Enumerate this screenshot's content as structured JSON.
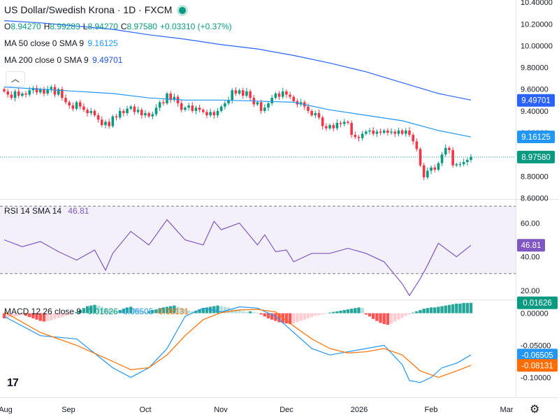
{
  "header": {
    "title": "US Dollar/Swedish Krona · 1D · FXCM",
    "ohlc": [
      {
        "k": "O",
        "v": "8.94270"
      },
      {
        "k": "H",
        "v": "8.99283"
      },
      {
        "k": "L",
        "v": "8.94270"
      },
      {
        "k": "C",
        "v": "8.97580"
      },
      {
        "k": "",
        "v": "+0.03310 (+0.37%)"
      }
    ],
    "ma50_label": "MA 50 close 0 SMA 9",
    "ma50_value": "9.16125",
    "ma200_label": "MA 200 close 0 SMA 9",
    "ma200_value": "9.49701",
    "collapse_icon": "chevron-up-icon"
  },
  "rsi_header": {
    "label": "RSI 14 SMA 14",
    "value": "46.81"
  },
  "macd_header": {
    "label": "MACD 12 26 close 9",
    "v1": "0.01626",
    "v2": "-0.06505",
    "v3": "-0.08131"
  },
  "colors": {
    "up": "#089981",
    "down": "#f23645",
    "ma50": "#2196f3",
    "ma200": "#2962ff",
    "rsi": "#7e57c2",
    "macd": "#2196f3",
    "signal": "#ff6d00",
    "hist_up_strong": "#26a69a",
    "hist_up_weak": "#b2dfdb",
    "hist_down_strong": "#ff5252",
    "hist_down_weak": "#ffcdd2"
  },
  "chart_data": [
    {
      "type": "candlestick",
      "title": "US Dollar/Swedish Krona · 1D · FXCM",
      "x_ticks": [
        "Aug",
        "Sep",
        "Oct",
        "Nov",
        "Dec",
        "2026",
        "Feb",
        "Mar"
      ],
      "y_ticks": [
        "10.40000",
        "10.20000",
        "10.00000",
        "9.80000",
        "9.60000",
        "9.40000",
        "9.20000",
        "9.00000",
        "8.80000",
        "8.60000"
      ],
      "ylim": [
        8.59,
        10.42
      ],
      "price_labels": [
        {
          "value": 9.49701,
          "text": "9.49701",
          "color": "#2962ff"
        },
        {
          "value": 9.16125,
          "text": "9.16125",
          "color": "#2196f3"
        },
        {
          "value": 8.9758,
          "text": "8.97580",
          "color": "#089981"
        }
      ],
      "closes": [
        9.58,
        9.55,
        9.52,
        9.58,
        9.54,
        9.56,
        9.55,
        9.59,
        9.61,
        9.57,
        9.6,
        9.56,
        9.6,
        9.62,
        9.55,
        9.6,
        9.52,
        9.48,
        9.45,
        9.42,
        9.48,
        9.44,
        9.41,
        9.38,
        9.4,
        9.36,
        9.32,
        9.27,
        9.3,
        9.26,
        9.35,
        9.34,
        9.4,
        9.38,
        9.42,
        9.44,
        9.39,
        9.41,
        9.36,
        9.38,
        9.35,
        9.37,
        9.43,
        9.48,
        9.47,
        9.56,
        9.5,
        9.53,
        9.47,
        9.41,
        9.43,
        9.45,
        9.4,
        9.43,
        9.41,
        9.39,
        9.36,
        9.39,
        9.36,
        9.4,
        9.44,
        9.47,
        9.5,
        9.59,
        9.56,
        9.59,
        9.54,
        9.58,
        9.52,
        9.46,
        9.48,
        9.4,
        9.43,
        9.47,
        9.52,
        9.56,
        9.53,
        9.58,
        9.55,
        9.53,
        9.49,
        9.46,
        9.48,
        9.44,
        9.4,
        9.36,
        9.38,
        9.34,
        9.26,
        9.24,
        9.27,
        9.24,
        9.29,
        9.28,
        9.3,
        9.29,
        9.18,
        9.16,
        9.15,
        9.19,
        9.21,
        9.22,
        9.19,
        9.21,
        9.2,
        9.22,
        9.2,
        9.21,
        9.19,
        9.22,
        9.19,
        9.22,
        9.18,
        9.12,
        9.05,
        8.9,
        8.79,
        8.85,
        8.88,
        8.86,
        8.92,
        9.0,
        9.06,
        9.04,
        8.9,
        8.91,
        8.91,
        8.93,
        8.95,
        8.9758
      ],
      "ma50": {
        "x": [
          0,
          10,
          20,
          30,
          40,
          50,
          60,
          70,
          80,
          90,
          100,
          110,
          120,
          129
        ],
        "y": [
          9.62,
          9.6,
          9.58,
          9.56,
          9.52,
          9.5,
          9.5,
          9.49,
          9.48,
          9.41,
          9.36,
          9.31,
          9.22,
          9.16
        ]
      },
      "ma200": {
        "x": [
          0,
          10,
          20,
          30,
          40,
          50,
          60,
          70,
          80,
          90,
          100,
          110,
          120,
          129
        ],
        "y": [
          10.23,
          10.21,
          10.18,
          10.15,
          10.1,
          10.06,
          10.01,
          9.97,
          9.91,
          9.84,
          9.76,
          9.66,
          9.56,
          9.5
        ]
      }
    },
    {
      "type": "line",
      "title": "RSI 14 SMA 14",
      "y_ticks": [
        "60.00",
        "40.00",
        "20.00"
      ],
      "ylim": [
        15,
        73
      ],
      "bands": [
        70,
        30
      ],
      "last_label": "46.81",
      "x": [
        0,
        5,
        10,
        15,
        20,
        25,
        28,
        30,
        35,
        40,
        45,
        50,
        55,
        58,
        60,
        65,
        70,
        72,
        75,
        78,
        80,
        85,
        90,
        95,
        100,
        105,
        110,
        112,
        115,
        117,
        120,
        125,
        129
      ],
      "values": [
        50,
        46,
        49,
        43,
        38,
        44,
        32,
        42,
        55,
        47,
        62,
        50,
        47,
        61,
        56,
        60,
        47,
        53,
        43,
        44,
        37,
        42,
        42,
        45,
        42,
        37,
        24,
        17,
        27,
        35,
        48,
        40,
        46.81
      ]
    },
    {
      "type": "bar+line",
      "title": "MACD 12 26 close 9",
      "y_ticks": [
        "0.00000",
        "-0.05000",
        "-0.10000"
      ],
      "ylim": [
        -0.13,
        0.018
      ],
      "labels": [
        {
          "value": 0.01626,
          "text": "0.01626",
          "color": "#089981"
        },
        {
          "value": -0.06505,
          "text": "-0.06505",
          "color": "#2196f3"
        },
        {
          "value": -0.08131,
          "text": "-0.08131",
          "color": "#ff6d00"
        }
      ],
      "macd": {
        "x": [
          0,
          10,
          20,
          30,
          35,
          40,
          45,
          50,
          55,
          60,
          65,
          70,
          75,
          80,
          85,
          90,
          95,
          100,
          105,
          110,
          112,
          115,
          118,
          121,
          125,
          129
        ],
        "y": [
          -0.005,
          -0.035,
          -0.04,
          -0.085,
          -0.1,
          -0.085,
          -0.055,
          -0.005,
          0.008,
          0.002,
          0.01,
          0.008,
          -0.005,
          -0.03,
          -0.055,
          -0.065,
          -0.06,
          -0.055,
          -0.05,
          -0.08,
          -0.105,
          -0.108,
          -0.1,
          -0.085,
          -0.078,
          -0.065
        ]
      },
      "signal": {
        "x": [
          0,
          10,
          20,
          30,
          35,
          40,
          45,
          50,
          55,
          60,
          65,
          70,
          75,
          80,
          85,
          90,
          95,
          100,
          105,
          110,
          115,
          120,
          125,
          129
        ],
        "y": [
          0.002,
          -0.03,
          -0.05,
          -0.075,
          -0.088,
          -0.085,
          -0.065,
          -0.035,
          -0.01,
          0.001,
          0.005,
          0.006,
          0.002,
          -0.02,
          -0.04,
          -0.055,
          -0.062,
          -0.06,
          -0.055,
          -0.065,
          -0.09,
          -0.1,
          -0.09,
          -0.0813
        ]
      },
      "histogram": [
        -0.008,
        -0.007,
        -0.006,
        -0.005,
        -0.004,
        -0.003,
        -0.004,
        -0.006,
        -0.008,
        -0.01,
        -0.012,
        -0.013,
        -0.012,
        -0.011,
        -0.009,
        -0.007,
        -0.006,
        -0.004,
        -0.003,
        -0.002,
        0.002,
        0.005,
        0.008,
        0.011,
        0.012,
        0.013,
        0.012,
        0.01,
        0.008,
        0.006,
        0.004,
        0.003,
        0.005,
        0.007,
        0.009,
        0.01,
        0.008,
        0.006,
        0.004,
        0.002,
        0.003,
        0.005,
        0.006,
        0.008,
        0.009,
        0.01,
        0.011,
        0.012,
        0.01,
        0.008,
        0.006,
        0.004,
        0.003,
        0.004,
        0.006,
        0.008,
        0.009,
        0.01,
        0.011,
        0.012,
        0.011,
        0.01,
        0.009,
        0.007,
        0.006,
        0.005,
        0.003,
        0.002,
        0.003,
        0.002,
        0.001,
        -0.002,
        -0.005,
        -0.008,
        -0.01,
        -0.012,
        -0.014,
        -0.015,
        -0.016,
        -0.017,
        -0.016,
        -0.014,
        -0.012,
        -0.01,
        -0.008,
        -0.006,
        -0.004,
        -0.003,
        -0.002,
        -0.001,
        0.001,
        0.002,
        0.003,
        0.004,
        0.005,
        0.006,
        0.007,
        0.008,
        0.009,
        0.008,
        -0.002,
        -0.005,
        -0.009,
        -0.012,
        -0.015,
        -0.017,
        -0.018,
        -0.016,
        -0.013,
        -0.01,
        -0.007,
        -0.004,
        -0.002,
        0.001,
        0.003,
        0.005,
        0.007,
        0.008,
        0.009,
        0.009,
        0.01,
        0.011,
        0.012,
        0.013,
        0.014,
        0.015,
        0.015,
        0.016,
        0.016,
        0.01626
      ]
    }
  ]
}
